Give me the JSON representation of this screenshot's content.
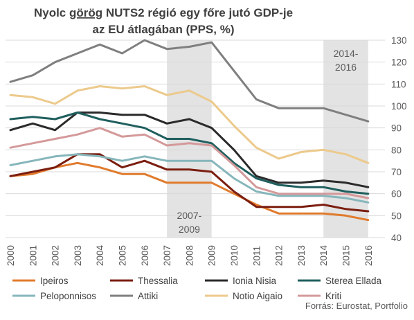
{
  "chart_data": {
    "type": "line",
    "title_line1_pre": "Nyolc ",
    "title_line1_underlined": "görög",
    "title_line1_post": " NUTS2 régió egy főre jutó GDP-je",
    "title_line2": "az EU átlagában (PPS, %)",
    "x": [
      "2000",
      "2001",
      "2002",
      "2003",
      "2004",
      "2005",
      "2006",
      "2007",
      "2008",
      "2009",
      "2010",
      "2011",
      "2012",
      "2013",
      "2014",
      "2015",
      "2016"
    ],
    "ylim": [
      40,
      130
    ],
    "yticks": [
      40,
      50,
      60,
      70,
      80,
      90,
      100,
      110,
      120,
      130
    ],
    "y_axis_side": "right",
    "grid": true,
    "shaded_periods": [
      {
        "from": "2007",
        "to": "2009",
        "label_lines": [
          "2007-",
          "2009"
        ],
        "label_position": "bottom"
      },
      {
        "from": "2014",
        "to": "2016",
        "label_lines": [
          "2014-",
          "2016"
        ],
        "label_position": "top"
      }
    ],
    "series": [
      {
        "name": "Ipeiros",
        "color": "#e07b2d",
        "values": [
          68,
          69,
          72,
          74,
          72,
          69,
          69,
          65,
          65,
          65,
          60,
          55,
          51,
          51,
          51,
          50,
          48
        ]
      },
      {
        "name": "Thessalia",
        "color": "#7b1e10",
        "values": [
          68,
          70,
          72,
          78,
          78,
          72,
          75,
          71,
          71,
          70,
          61,
          54,
          54,
          54,
          55,
          53,
          52
        ]
      },
      {
        "name": "Ionia Nisia",
        "color": "#2a2a2a",
        "values": [
          89,
          92,
          89,
          97,
          97,
          96,
          96,
          92,
          94,
          90,
          80,
          68,
          65,
          65,
          66,
          65,
          63
        ]
      },
      {
        "name": "Sterea Ellada",
        "color": "#1f5f5e",
        "values": [
          94,
          95,
          94,
          97,
          94,
          92,
          90,
          85,
          85,
          83,
          74,
          67,
          64,
          63,
          63,
          61,
          60
        ]
      },
      {
        "name": "Peloponnisos",
        "color": "#86b6bb",
        "values": [
          73,
          75,
          77,
          78,
          77,
          75,
          77,
          75,
          75,
          75,
          67,
          61,
          59,
          59,
          59,
          58,
          56
        ]
      },
      {
        "name": "Attiki",
        "color": "#7f7f7f",
        "values": [
          111,
          114,
          120,
          124,
          128,
          124,
          130,
          126,
          127,
          129,
          116,
          103,
          99,
          99,
          99,
          96,
          93
        ]
      },
      {
        "name": "Notio Aigaio",
        "color": "#ecca8c",
        "values": [
          105,
          104,
          101,
          107,
          109,
          108,
          109,
          105,
          107,
          102,
          91,
          81,
          76,
          79,
          80,
          78,
          74
        ]
      },
      {
        "name": "Kriti",
        "color": "#d4999a",
        "values": [
          81,
          83,
          85,
          87,
          90,
          86,
          87,
          82,
          83,
          82,
          73,
          63,
          60,
          60,
          60,
          60,
          58
        ]
      }
    ],
    "source": "Forrás: Eurostat, Portfolio"
  }
}
